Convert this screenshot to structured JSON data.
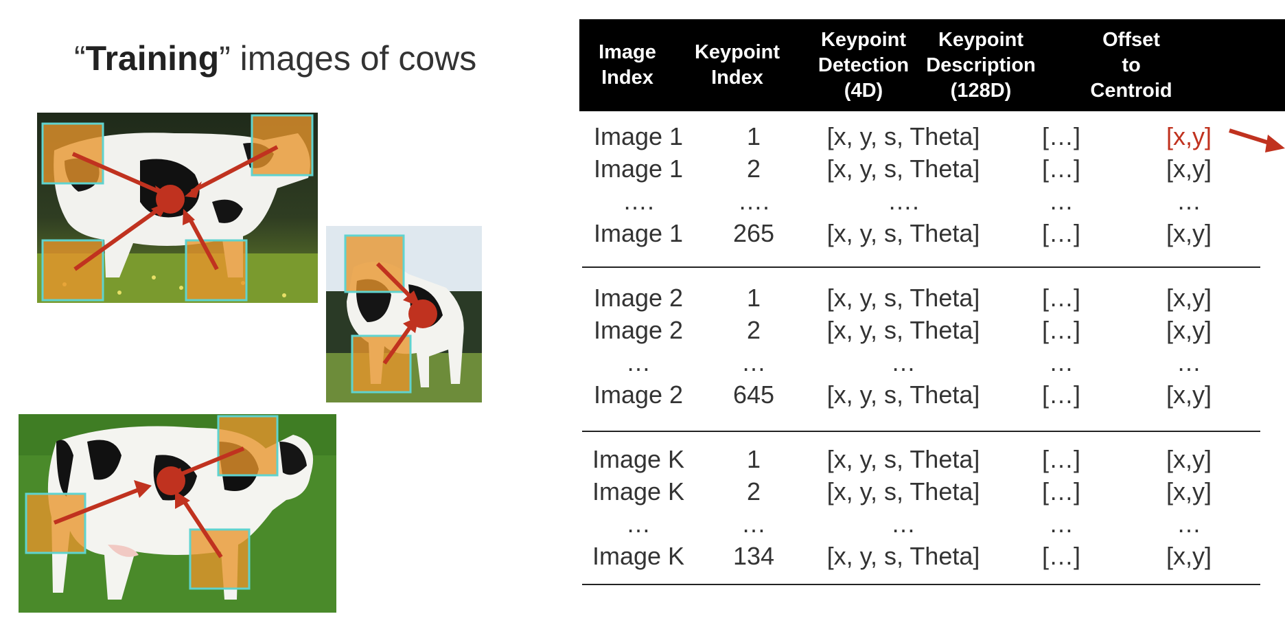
{
  "title": {
    "bold": "Training",
    "rest": " images of cows"
  },
  "table": {
    "headers": [
      {
        "id": "image-index",
        "lines": [
          "Image",
          "Index"
        ]
      },
      {
        "id": "keypoint-index",
        "lines": [
          "Keypoint",
          "Index"
        ]
      },
      {
        "id": "keypoint-detection",
        "lines": [
          "Keypoint",
          "Detection",
          "(4D)"
        ]
      },
      {
        "id": "keypoint-description",
        "lines": [
          "Keypoint",
          "Description",
          "(128D)"
        ]
      },
      {
        "id": "offset-to-centroid",
        "lines": [
          "Offset",
          "to",
          "Centroid"
        ]
      }
    ],
    "groups": [
      {
        "rows": [
          [
            "Image 1",
            "1",
            "[x, y, s, Theta]",
            "[…]",
            "[x,y]"
          ],
          [
            "Image 1",
            "2",
            "[x, y, s, Theta]",
            "[…]",
            "[x,y]"
          ],
          [
            "….",
            "….",
            "….",
            "…",
            "…"
          ],
          [
            "Image 1",
            "265",
            "[x, y, s, Theta]",
            "[…]",
            "[x,y]"
          ]
        ]
      },
      {
        "rows": [
          [
            "Image 2",
            "1",
            "[x, y, s, Theta]",
            "[…]",
            "[x,y]"
          ],
          [
            "Image 2",
            "2",
            "[x, y, s, Theta]",
            "[…]",
            "[x,y]"
          ],
          [
            "…",
            "…",
            "…",
            "…",
            "…"
          ],
          [
            "Image 2",
            "645",
            "[x, y, s, Theta]",
            "[…]",
            "[x,y]"
          ]
        ]
      },
      {
        "rows": [
          [
            "Image K",
            "1",
            "[x, y, s, Theta]",
            "[…]",
            "[x,y]"
          ],
          [
            "Image K",
            "2",
            "[x, y, s, Theta]",
            "[…]",
            "[x,y]"
          ],
          [
            "…",
            "…",
            "…",
            "…",
            "…"
          ],
          [
            "Image K",
            "134",
            "[x, y, s, Theta]",
            "[…]",
            "[x,y]"
          ]
        ]
      }
    ]
  },
  "colors": {
    "arrow": "#c0321f",
    "highlight_fill": "#e8952c",
    "highlight_stroke": "#5fd3cf",
    "header_bg": "#000000",
    "header_text": "#ffffff",
    "emphasis_text": "#c0321f"
  }
}
